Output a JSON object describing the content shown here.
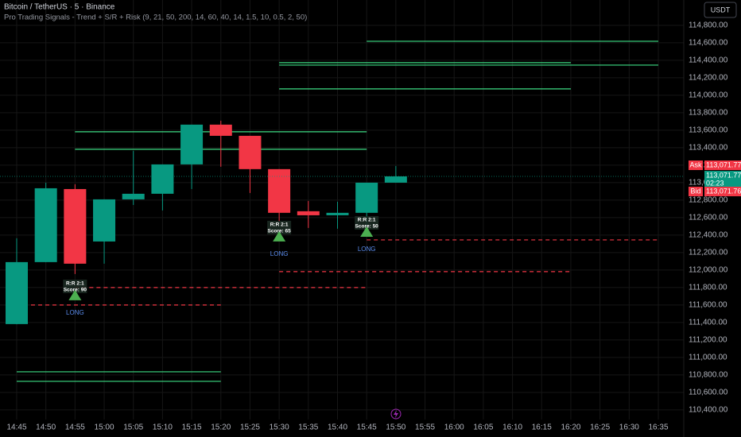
{
  "chart_data": {
    "type": "candlestick",
    "title": "Bitcoin / TetherUS · 5 · Binance",
    "subtitle": "Pro Trading Signals - Trend + S/R + Risk (9, 21, 50, 200, 14, 60, 40, 14, 1.5, 10, 0.5, 2, 50)",
    "currency": "USDT",
    "categories": [
      "14:45",
      "14:50",
      "14:55",
      "15:00",
      "15:05",
      "15:10",
      "15:15",
      "15:20",
      "15:25",
      "15:30",
      "15:35",
      "15:40",
      "15:45",
      "15:50",
      "15:55",
      "16:00",
      "16:05",
      "16:10",
      "16:15",
      "16:20",
      "16:25",
      "16:30",
      "16:35"
    ],
    "open": [
      111382,
      112091,
      112927,
      112327,
      112809,
      112873,
      113209,
      113664,
      113536,
      113155,
      112673,
      112627,
      112655,
      113000,
      null,
      null,
      null,
      null,
      null,
      null,
      null,
      null,
      null
    ],
    "high": [
      112364,
      113000,
      112982,
      112809,
      113364,
      113209,
      113664,
      113709,
      113536,
      113155,
      112791,
      112782,
      113000,
      113191,
      null,
      null,
      null,
      null,
      null,
      null,
      null,
      null,
      null
    ],
    "low": [
      111380,
      112091,
      111955,
      112073,
      112745,
      112682,
      112927,
      113182,
      112882,
      112545,
      112482,
      112473,
      112455,
      113000,
      null,
      null,
      null,
      null,
      null,
      null,
      null,
      null,
      null
    ],
    "close": [
      112091,
      112936,
      112073,
      112809,
      112873,
      113209,
      113664,
      113536,
      113155,
      112655,
      112627,
      112655,
      113000,
      113071.77,
      null,
      null,
      null,
      null,
      null,
      null,
      null,
      null,
      null
    ],
    "up_color": "#089981",
    "down_color": "#f23645",
    "ylim": [
      110290,
      115090
    ],
    "yticks": [
      {
        "value": 110400,
        "label": "110,400.00"
      },
      {
        "value": 110600,
        "label": "110,600.00"
      },
      {
        "value": 110800,
        "label": "110,800.00"
      },
      {
        "value": 111000,
        "label": "111,000.00"
      },
      {
        "value": 111200,
        "label": "111,200.00"
      },
      {
        "value": 111400,
        "label": "111,400.00"
      },
      {
        "value": 111600,
        "label": "111,600.00"
      },
      {
        "value": 111800,
        "label": "111,800.00"
      },
      {
        "value": 112000,
        "label": "112,000.00"
      },
      {
        "value": 112200,
        "label": "112,200.00"
      },
      {
        "value": 112400,
        "label": "112,400.00"
      },
      {
        "value": 112600,
        "label": "112,600.00"
      },
      {
        "value": 112800,
        "label": "112,800.00"
      },
      {
        "value": 113000,
        "label": "113,000.00"
      },
      {
        "value": 113200,
        "label": "113,200.00"
      },
      {
        "value": 113400,
        "label": "113,400.00"
      },
      {
        "value": 113600,
        "label": "113,600.00"
      },
      {
        "value": 113800,
        "label": "113,800.00"
      },
      {
        "value": 114000,
        "label": "114,000.00"
      },
      {
        "value": 114200,
        "label": "114,200.00"
      },
      {
        "value": 114400,
        "label": "114,400.00"
      },
      {
        "value": 114600,
        "label": "114,600.00"
      },
      {
        "value": 114800,
        "label": "114,800.00"
      }
    ],
    "grid": true,
    "levels": [
      {
        "value": 114618,
        "from": "15:45",
        "to": "16:35",
        "color": "#3ddc84",
        "dashed": false
      },
      {
        "value": 114373,
        "from": "15:30",
        "to": "16:20",
        "color": "#3ddc84",
        "dashed": false
      },
      {
        "value": 114345,
        "from": "15:30",
        "to": "16:35",
        "color": "#3ddc84",
        "dashed": false
      },
      {
        "value": 114073,
        "from": "15:30",
        "to": "16:20",
        "color": "#3ddc84",
        "dashed": false
      },
      {
        "value": 113582,
        "from": "14:55",
        "to": "15:45",
        "color": "#3ddc84",
        "dashed": false
      },
      {
        "value": 113382,
        "from": "14:55",
        "to": "15:45",
        "color": "#3ddc84",
        "dashed": false
      },
      {
        "value": 110836,
        "from": "14:45",
        "to": "15:20",
        "color": "#3ddc84",
        "dashed": false
      },
      {
        "value": 110727,
        "from": "14:45",
        "to": "15:20",
        "color": "#3ddc84",
        "dashed": false
      },
      {
        "value": 112345,
        "from": "15:45",
        "to": "16:35",
        "color": "#f23645",
        "dashed": true
      },
      {
        "value": 111982,
        "from": "15:30",
        "to": "16:20",
        "color": "#f23645",
        "dashed": true
      },
      {
        "value": 111800,
        "from": "14:55",
        "to": "15:45",
        "color": "#f23645",
        "dashed": true
      },
      {
        "value": 111600,
        "from": "14:45",
        "to": "15:20",
        "color": "#f23645",
        "dashed": true
      }
    ],
    "signals": [
      {
        "time": "14:55",
        "price": 111709,
        "rr": "R:R 2:1",
        "score": "Score: 90",
        "action": "LONG"
      },
      {
        "time": "15:30",
        "price": 112382,
        "rr": "R:R 2:1",
        "score": "Score: 65",
        "action": "LONG"
      },
      {
        "time": "15:45",
        "price": 112436,
        "rr": "R:R 2:1",
        "score": "Score: 50",
        "action": "LONG"
      }
    ],
    "ask": {
      "name": "Ask",
      "value": 113071.77,
      "label": "113,071.77"
    },
    "last": {
      "value": 113071.77,
      "label": "113,071.77"
    },
    "countdown": "02:23",
    "bid": {
      "name": "Bid",
      "value": 113071.76,
      "label": "113,071.76"
    }
  }
}
